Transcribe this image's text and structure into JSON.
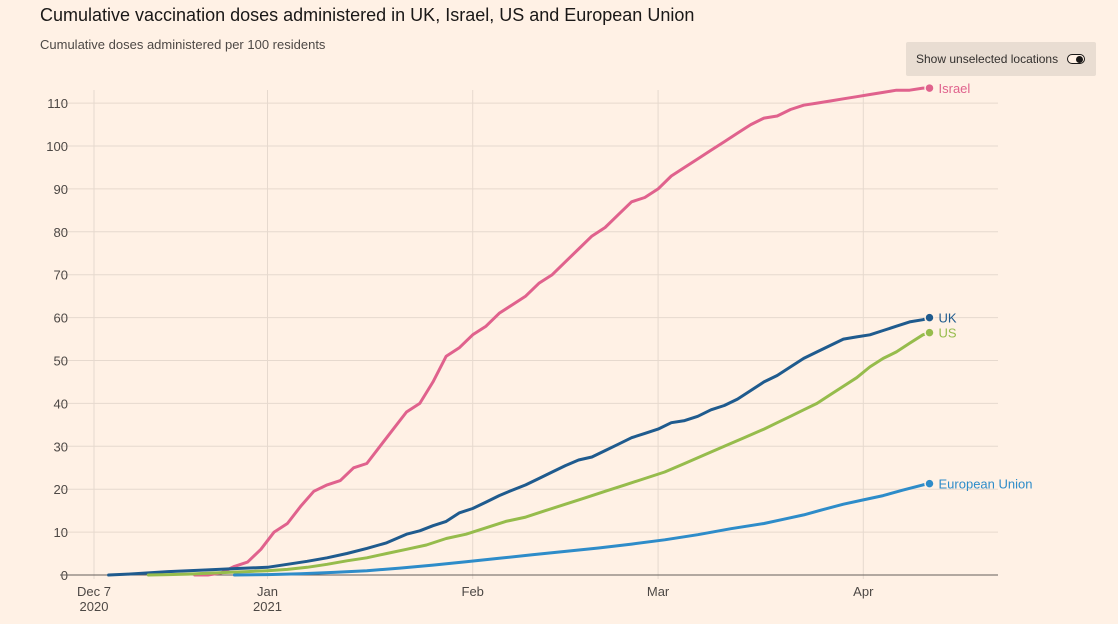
{
  "header": {
    "title": "Cumulative vaccination doses administered in UK, Israel, US and European Union",
    "subtitle": "Cumulative doses administered per 100 residents"
  },
  "controls": {
    "toggle_label": "Show unselected locations",
    "toggle_on": true
  },
  "chart_data": {
    "type": "line",
    "title": "Cumulative vaccination doses administered in UK, Israel, US and European Union",
    "ylabel": "Cumulative doses administered per 100 residents",
    "xlabel": "",
    "ylim": [
      0,
      112
    ],
    "xlim_day": [
      0,
      140
    ],
    "x_unit": "days since 2020-12-07",
    "y_ticks": [
      0,
      10,
      20,
      30,
      40,
      50,
      60,
      70,
      80,
      90,
      100,
      110
    ],
    "x_ticks": [
      {
        "day": 0,
        "label": "Dec 7",
        "sublabel": "2020"
      },
      {
        "day": 25,
        "label": "Jan",
        "sublabel": "2021"
      },
      {
        "day": 56,
        "label": "Feb",
        "sublabel": ""
      },
      {
        "day": 84,
        "label": "Mar",
        "sublabel": ""
      },
      {
        "day": 115,
        "label": "Apr",
        "sublabel": ""
      }
    ],
    "grid": true,
    "series": [
      {
        "name": "Israel",
        "color": "#e0628d",
        "points": [
          [
            14,
            0
          ],
          [
            16,
            0
          ],
          [
            18,
            0.5
          ],
          [
            20,
            2
          ],
          [
            22,
            3
          ],
          [
            24,
            6
          ],
          [
            26,
            10
          ],
          [
            28,
            12
          ],
          [
            30,
            16
          ],
          [
            32,
            19.5
          ],
          [
            34,
            21
          ],
          [
            36,
            22
          ],
          [
            38,
            25
          ],
          [
            40,
            26
          ],
          [
            42,
            30
          ],
          [
            44,
            34
          ],
          [
            46,
            38
          ],
          [
            48,
            40
          ],
          [
            50,
            45
          ],
          [
            52,
            51
          ],
          [
            54,
            53
          ],
          [
            56,
            56
          ],
          [
            58,
            58
          ],
          [
            60,
            61
          ],
          [
            62,
            63
          ],
          [
            64,
            65
          ],
          [
            66,
            68
          ],
          [
            68,
            70
          ],
          [
            70,
            73
          ],
          [
            72,
            76
          ],
          [
            74,
            79
          ],
          [
            76,
            81
          ],
          [
            78,
            84
          ],
          [
            80,
            87
          ],
          [
            82,
            88
          ],
          [
            84,
            90
          ],
          [
            86,
            93
          ],
          [
            88,
            95
          ],
          [
            90,
            97
          ],
          [
            92,
            99
          ],
          [
            94,
            101
          ],
          [
            96,
            103
          ],
          [
            98,
            105
          ],
          [
            100,
            106.5
          ],
          [
            102,
            107
          ],
          [
            104,
            108.5
          ],
          [
            106,
            109.5
          ],
          [
            108,
            110
          ],
          [
            110,
            110.5
          ],
          [
            112,
            111
          ],
          [
            114,
            111.5
          ],
          [
            116,
            112
          ],
          [
            118,
            112.5
          ],
          [
            120,
            113
          ],
          [
            122,
            113
          ],
          [
            124,
            113.5
          ],
          [
            125,
            113.5
          ]
        ]
      },
      {
        "name": "UK",
        "color": "#1f5b8e",
        "points": [
          [
            1,
            0
          ],
          [
            4,
            0.2
          ],
          [
            7,
            0.5
          ],
          [
            10,
            0.8
          ],
          [
            13,
            1
          ],
          [
            16,
            1.2
          ],
          [
            20,
            1.5
          ],
          [
            25,
            1.8
          ],
          [
            28,
            2.5
          ],
          [
            31,
            3.2
          ],
          [
            34,
            4
          ],
          [
            37,
            5
          ],
          [
            40,
            6.2
          ],
          [
            43,
            7.5
          ],
          [
            46,
            9.5
          ],
          [
            48,
            10.3
          ],
          [
            50,
            11.5
          ],
          [
            52,
            12.5
          ],
          [
            54,
            14.5
          ],
          [
            56,
            15.5
          ],
          [
            58,
            17
          ],
          [
            60,
            18.5
          ],
          [
            62,
            19.8
          ],
          [
            64,
            21
          ],
          [
            66,
            22.5
          ],
          [
            68,
            24
          ],
          [
            70,
            25.5
          ],
          [
            72,
            26.8
          ],
          [
            74,
            27.5
          ],
          [
            76,
            29
          ],
          [
            78,
            30.5
          ],
          [
            80,
            32
          ],
          [
            82,
            33
          ],
          [
            84,
            34
          ],
          [
            86,
            35.5
          ],
          [
            88,
            36
          ],
          [
            90,
            37
          ],
          [
            92,
            38.5
          ],
          [
            94,
            39.5
          ],
          [
            96,
            41
          ],
          [
            98,
            43
          ],
          [
            100,
            45
          ],
          [
            102,
            46.5
          ],
          [
            104,
            48.5
          ],
          [
            106,
            50.5
          ],
          [
            108,
            52
          ],
          [
            110,
            53.5
          ],
          [
            112,
            55
          ],
          [
            114,
            55.5
          ],
          [
            116,
            56
          ],
          [
            118,
            57
          ],
          [
            120,
            58
          ],
          [
            122,
            59
          ],
          [
            124,
            59.5
          ],
          [
            125,
            60
          ]
        ]
      },
      {
        "name": "US",
        "color": "#96bc4c",
        "points": [
          [
            7,
            0
          ],
          [
            10,
            0.1
          ],
          [
            13,
            0.2
          ],
          [
            16,
            0.4
          ],
          [
            19,
            0.6
          ],
          [
            22,
            0.8
          ],
          [
            25,
            1
          ],
          [
            28,
            1.3
          ],
          [
            31,
            1.8
          ],
          [
            34,
            2.5
          ],
          [
            37,
            3.3
          ],
          [
            40,
            4
          ],
          [
            43,
            5
          ],
          [
            46,
            6
          ],
          [
            49,
            7
          ],
          [
            52,
            8.5
          ],
          [
            55,
            9.5
          ],
          [
            58,
            11
          ],
          [
            61,
            12.5
          ],
          [
            64,
            13.5
          ],
          [
            67,
            15
          ],
          [
            70,
            16.5
          ],
          [
            73,
            18
          ],
          [
            76,
            19.5
          ],
          [
            79,
            21
          ],
          [
            82,
            22.5
          ],
          [
            85,
            24
          ],
          [
            88,
            26
          ],
          [
            91,
            28
          ],
          [
            94,
            30
          ],
          [
            97,
            32
          ],
          [
            100,
            34
          ],
          [
            102,
            35.5
          ],
          [
            104,
            37
          ],
          [
            106,
            38.5
          ],
          [
            108,
            40
          ],
          [
            110,
            42
          ],
          [
            112,
            44
          ],
          [
            114,
            46
          ],
          [
            116,
            48.5
          ],
          [
            118,
            50.5
          ],
          [
            120,
            52
          ],
          [
            122,
            54
          ],
          [
            124,
            56
          ],
          [
            125,
            56.5
          ]
        ]
      },
      {
        "name": "European Union",
        "color": "#2e8cc9",
        "points": [
          [
            20,
            0
          ],
          [
            25,
            0.1
          ],
          [
            30,
            0.3
          ],
          [
            35,
            0.6
          ],
          [
            40,
            1
          ],
          [
            45,
            1.6
          ],
          [
            50,
            2.3
          ],
          [
            55,
            3.1
          ],
          [
            60,
            3.9
          ],
          [
            65,
            4.7
          ],
          [
            70,
            5.5
          ],
          [
            75,
            6.3
          ],
          [
            80,
            7.2
          ],
          [
            85,
            8.2
          ],
          [
            90,
            9.4
          ],
          [
            95,
            10.8
          ],
          [
            100,
            12
          ],
          [
            103,
            13
          ],
          [
            106,
            14
          ],
          [
            109,
            15.3
          ],
          [
            112,
            16.5
          ],
          [
            115,
            17.5
          ],
          [
            118,
            18.5
          ],
          [
            121,
            19.8
          ],
          [
            124,
            21
          ],
          [
            125,
            21.3
          ]
        ]
      }
    ]
  }
}
